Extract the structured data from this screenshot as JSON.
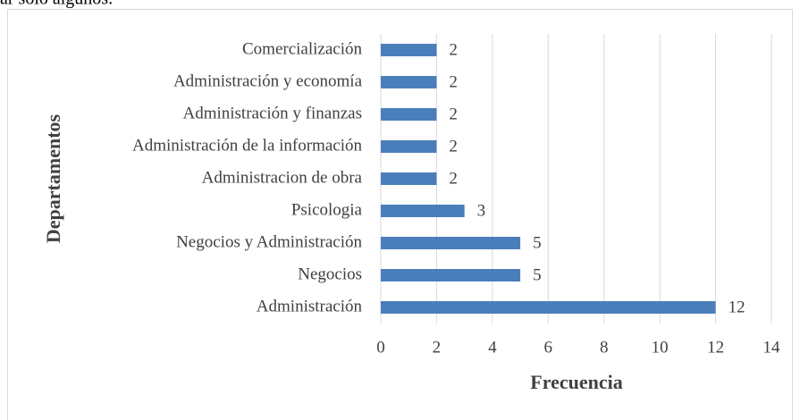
{
  "header_text": "ar solo algunos.",
  "chart_data": {
    "type": "barh",
    "xlabel": "Frecuencia",
    "ylabel": "Departamentos",
    "categories": [
      "Comercialización",
      "Administración y economía",
      "Administración y finanzas",
      "Administración de la información",
      "Administracion de obra",
      "Psicologia",
      "Negocios y Administración",
      "Negocios",
      "Administración"
    ],
    "values": [
      2,
      2,
      2,
      2,
      2,
      3,
      5,
      5,
      12
    ],
    "color": "#4a7ebb",
    "xlim": [
      0,
      14
    ],
    "xticks": [
      0,
      2,
      4,
      6,
      8,
      10,
      12,
      14
    ],
    "grid": true
  }
}
